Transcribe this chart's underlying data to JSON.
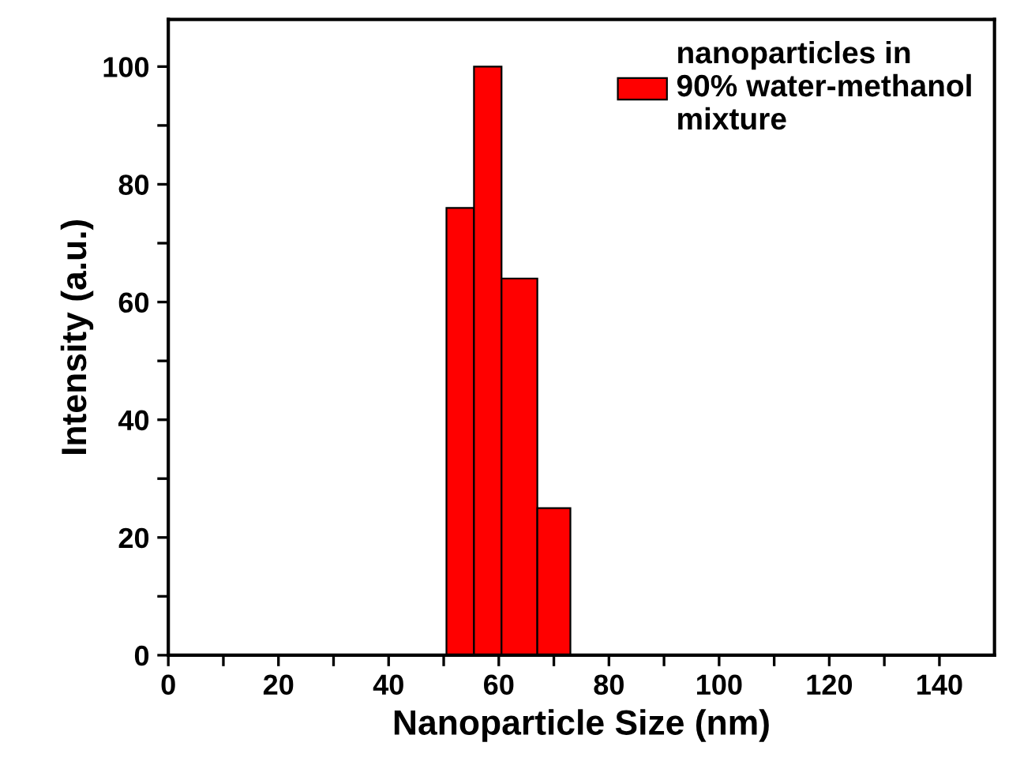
{
  "chart_data": {
    "type": "histogram",
    "xlabel": "Nanoparticle Size (nm)",
    "ylabel": "Intensity (a.u.)",
    "bins": [
      50.5,
      55.5,
      60.5,
      67,
      73
    ],
    "series": [
      {
        "name": "nanoparticles in\n90% water-methanol\nmixture",
        "color": "#ff0000",
        "values": [
          76,
          100,
          64,
          25
        ]
      }
    ],
    "xlim": [
      0,
      150
    ],
    "ylim": [
      0,
      108
    ],
    "xticks": [
      0,
      {
        "value": 10,
        "label": null
      },
      20,
      {
        "value": 30,
        "label": null
      },
      40,
      {
        "value": 50,
        "label": null
      },
      60,
      {
        "value": 70,
        "label": null
      },
      80,
      {
        "value": 90,
        "label": null
      },
      100,
      {
        "value": 110,
        "label": null
      },
      120,
      {
        "value": 130,
        "label": null
      },
      140
    ],
    "yticks": [
      0,
      {
        "value": 10,
        "label": null
      },
      20,
      {
        "value": 30,
        "label": null
      },
      40,
      {
        "value": 50,
        "label": null
      },
      60,
      {
        "value": 70,
        "label": null
      },
      80,
      {
        "value": 90,
        "label": null
      },
      100
    ],
    "grid": false,
    "legend": "top right"
  }
}
